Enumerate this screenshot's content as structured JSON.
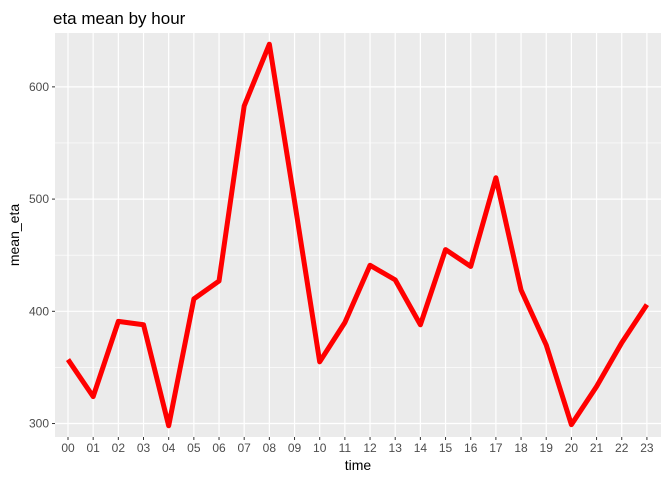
{
  "chart_data": {
    "type": "line",
    "title": "eta mean by hour",
    "xlabel": "time",
    "ylabel": "mean_eta",
    "categories": [
      "00",
      "01",
      "02",
      "03",
      "04",
      "05",
      "06",
      "07",
      "08",
      "09",
      "10",
      "11",
      "12",
      "13",
      "14",
      "15",
      "16",
      "17",
      "18",
      "19",
      "20",
      "21",
      "22",
      "23"
    ],
    "series": [
      {
        "values": [
          357,
          324,
          391,
          388,
          298,
          411,
          427,
          583,
          638,
          498,
          355,
          390,
          441,
          428,
          388,
          455,
          440,
          519,
          419,
          370,
          299,
          333,
          372,
          406
        ]
      }
    ],
    "ylim": [
      288,
      648
    ],
    "yticks": [
      300,
      400,
      500,
      600
    ],
    "grid": true,
    "colors": {
      "line": "#ff0000",
      "panel": "#ebebeb",
      "grid": "#ffffff"
    }
  }
}
